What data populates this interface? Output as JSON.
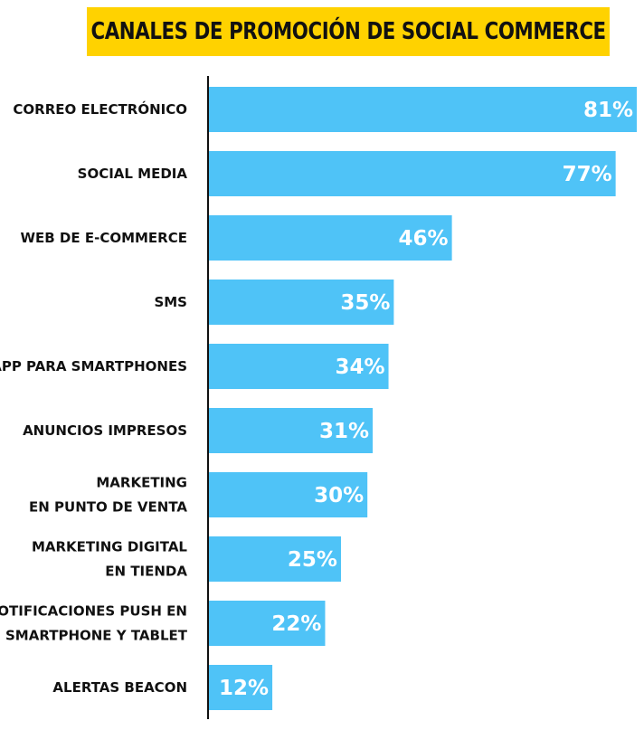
{
  "chart_data": {
    "type": "bar",
    "orientation": "horizontal",
    "title": "CANALES DE PROMOCIÓN DE SOCIAL COMMERCE",
    "categories": [
      [
        "CORREO ELECTRÓNICO"
      ],
      [
        "SOCIAL MEDIA"
      ],
      [
        "WEB DE E-COMMERCE"
      ],
      [
        "SMS"
      ],
      [
        "APP PARA SMARTPHONES"
      ],
      [
        "ANUNCIOS IMPRESOS"
      ],
      [
        "MARKETING",
        "EN PUNTO DE VENTA"
      ],
      [
        "MARKETING DIGITAL",
        "EN TIENDA"
      ],
      [
        "NOTIFICACIONES PUSH EN",
        "SMARTPHONE Y TABLET"
      ],
      [
        "ALERTAS BEACON"
      ]
    ],
    "values": [
      81,
      77,
      46,
      35,
      34,
      31,
      30,
      25,
      22,
      12
    ],
    "value_labels": [
      "81%",
      "77%",
      "46%",
      "35%",
      "34%",
      "31%",
      "30%",
      "25%",
      "22%",
      "12%"
    ],
    "unit": "%",
    "xlim": [
      0,
      81
    ],
    "grid": false,
    "bar_color": "#4fc3f7",
    "title_background": "#ffd200",
    "axis_color": "#111111"
  }
}
